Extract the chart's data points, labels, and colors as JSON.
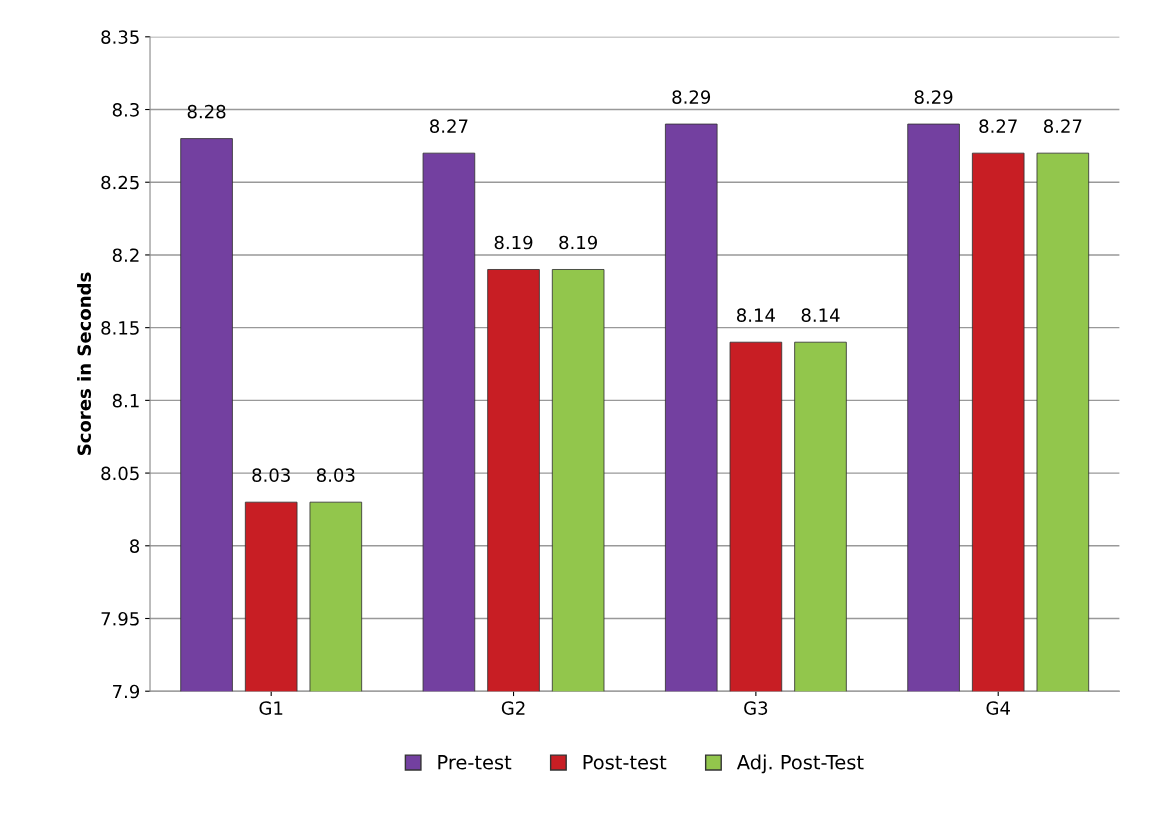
{
  "chart_data": {
    "type": "bar",
    "ylabel": "Scores in Seconds",
    "categories": [
      "G1",
      "G2",
      "G3",
      "G4"
    ],
    "series": [
      {
        "name": "Pre-test",
        "color": "#7340a0",
        "values": [
          8.28,
          8.27,
          8.29,
          8.29
        ]
      },
      {
        "name": "Post-test",
        "color": "#c81e24",
        "values": [
          8.03,
          8.19,
          8.14,
          8.27
        ]
      },
      {
        "name": "Adj. Post-Test",
        "color": "#92c64c",
        "values": [
          8.03,
          8.19,
          8.14,
          8.27
        ]
      }
    ],
    "ylim": [
      7.9,
      8.35
    ],
    "yticks": [
      7.9,
      7.95,
      8,
      8.05,
      8.1,
      8.15,
      8.2,
      8.25,
      8.3,
      8.35
    ],
    "grid": "y",
    "legend": "bottom",
    "data_labels": true
  }
}
